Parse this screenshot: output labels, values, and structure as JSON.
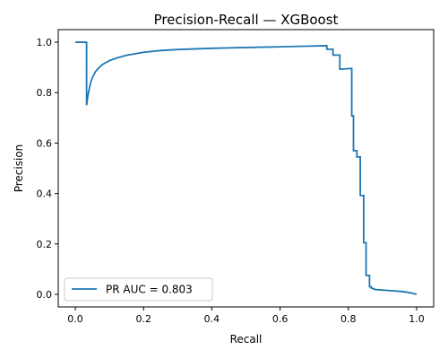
{
  "chart_data": {
    "type": "line",
    "title": "Precision-Recall — XGBoost",
    "xlabel": "Recall",
    "ylabel": "Precision",
    "xlim": [
      -0.05,
      1.05
    ],
    "ylim": [
      -0.05,
      1.05
    ],
    "xticks": [
      "0.0",
      "0.2",
      "0.4",
      "0.6",
      "0.8",
      "1.0"
    ],
    "yticks": [
      "0.0",
      "0.2",
      "0.4",
      "0.6",
      "0.8",
      "1.0"
    ],
    "grid": false,
    "legend_position": "lower-left",
    "series": [
      {
        "name": "PR AUC = 0.803",
        "color": "#1f77b4",
        "x": [
          0.0,
          0.033,
          0.033,
          0.036,
          0.04,
          0.045,
          0.05,
          0.06,
          0.07,
          0.08,
          0.1,
          0.12,
          0.15,
          0.2,
          0.25,
          0.3,
          0.4,
          0.5,
          0.6,
          0.7,
          0.737,
          0.737,
          0.755,
          0.755,
          0.775,
          0.775,
          0.81,
          0.81,
          0.815,
          0.815,
          0.825,
          0.825,
          0.835,
          0.835,
          0.845,
          0.845,
          0.852,
          0.852,
          0.862,
          0.862,
          0.867,
          0.867,
          0.875,
          0.875,
          0.88,
          0.9,
          0.92,
          0.95,
          0.97,
          0.985,
          1.0
        ],
        "y": [
          1.0,
          1.0,
          0.75,
          0.78,
          0.81,
          0.84,
          0.86,
          0.885,
          0.9,
          0.912,
          0.927,
          0.937,
          0.948,
          0.96,
          0.967,
          0.971,
          0.976,
          0.979,
          0.982,
          0.985,
          0.986,
          0.972,
          0.972,
          0.949,
          0.949,
          0.893,
          0.896,
          0.708,
          0.708,
          0.57,
          0.57,
          0.545,
          0.545,
          0.392,
          0.392,
          0.205,
          0.205,
          0.075,
          0.075,
          0.03,
          0.03,
          0.025,
          0.022,
          0.02,
          0.019,
          0.017,
          0.015,
          0.012,
          0.009,
          0.005,
          0.0
        ]
      }
    ]
  }
}
